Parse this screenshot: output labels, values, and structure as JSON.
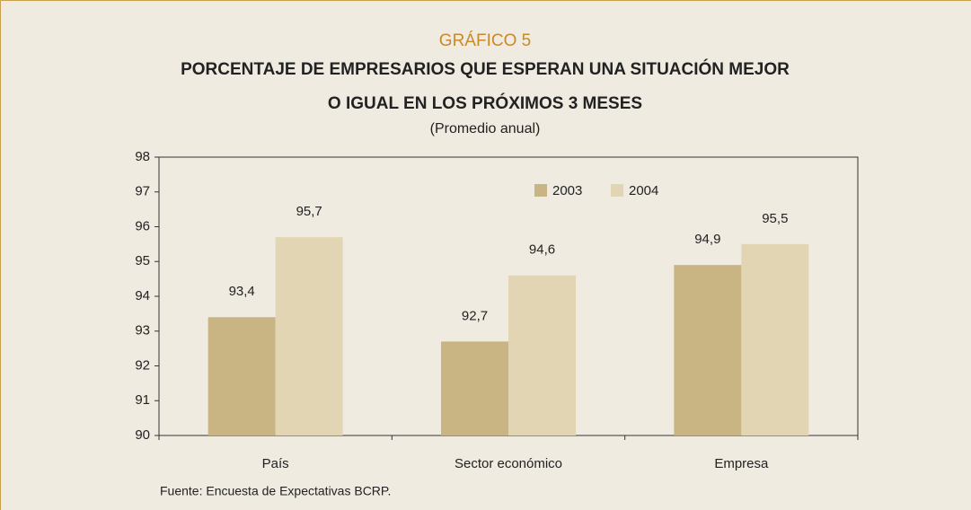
{
  "chart_data": {
    "type": "bar",
    "label": "GRÁFICO 5",
    "title": [
      "PORCENTAJE DE EMPRESARIOS QUE ESPERAN UNA SITUACIÓN MEJOR",
      "O IGUAL EN LOS PRÓXIMOS 3 MESES"
    ],
    "subtitle": "(Promedio anual)",
    "source": "Fuente: Encuesta de Expectativas BCRP.",
    "categories": [
      "País",
      "Sector económico",
      "Empresa"
    ],
    "series": [
      {
        "name": "2003",
        "color": "#c9b584",
        "values": [
          93.4,
          92.7,
          94.9
        ],
        "value_labels": [
          "93,4",
          "92,7",
          "94,9"
        ]
      },
      {
        "name": "2004",
        "color": "#e1d5b3",
        "values": [
          95.7,
          94.6,
          95.5
        ],
        "value_labels": [
          "95,7",
          "94,6",
          "95,5"
        ]
      }
    ],
    "ylim": [
      90,
      98
    ],
    "yticks": [
      90,
      91,
      92,
      93,
      94,
      95,
      96,
      97,
      98
    ],
    "grid": false
  }
}
